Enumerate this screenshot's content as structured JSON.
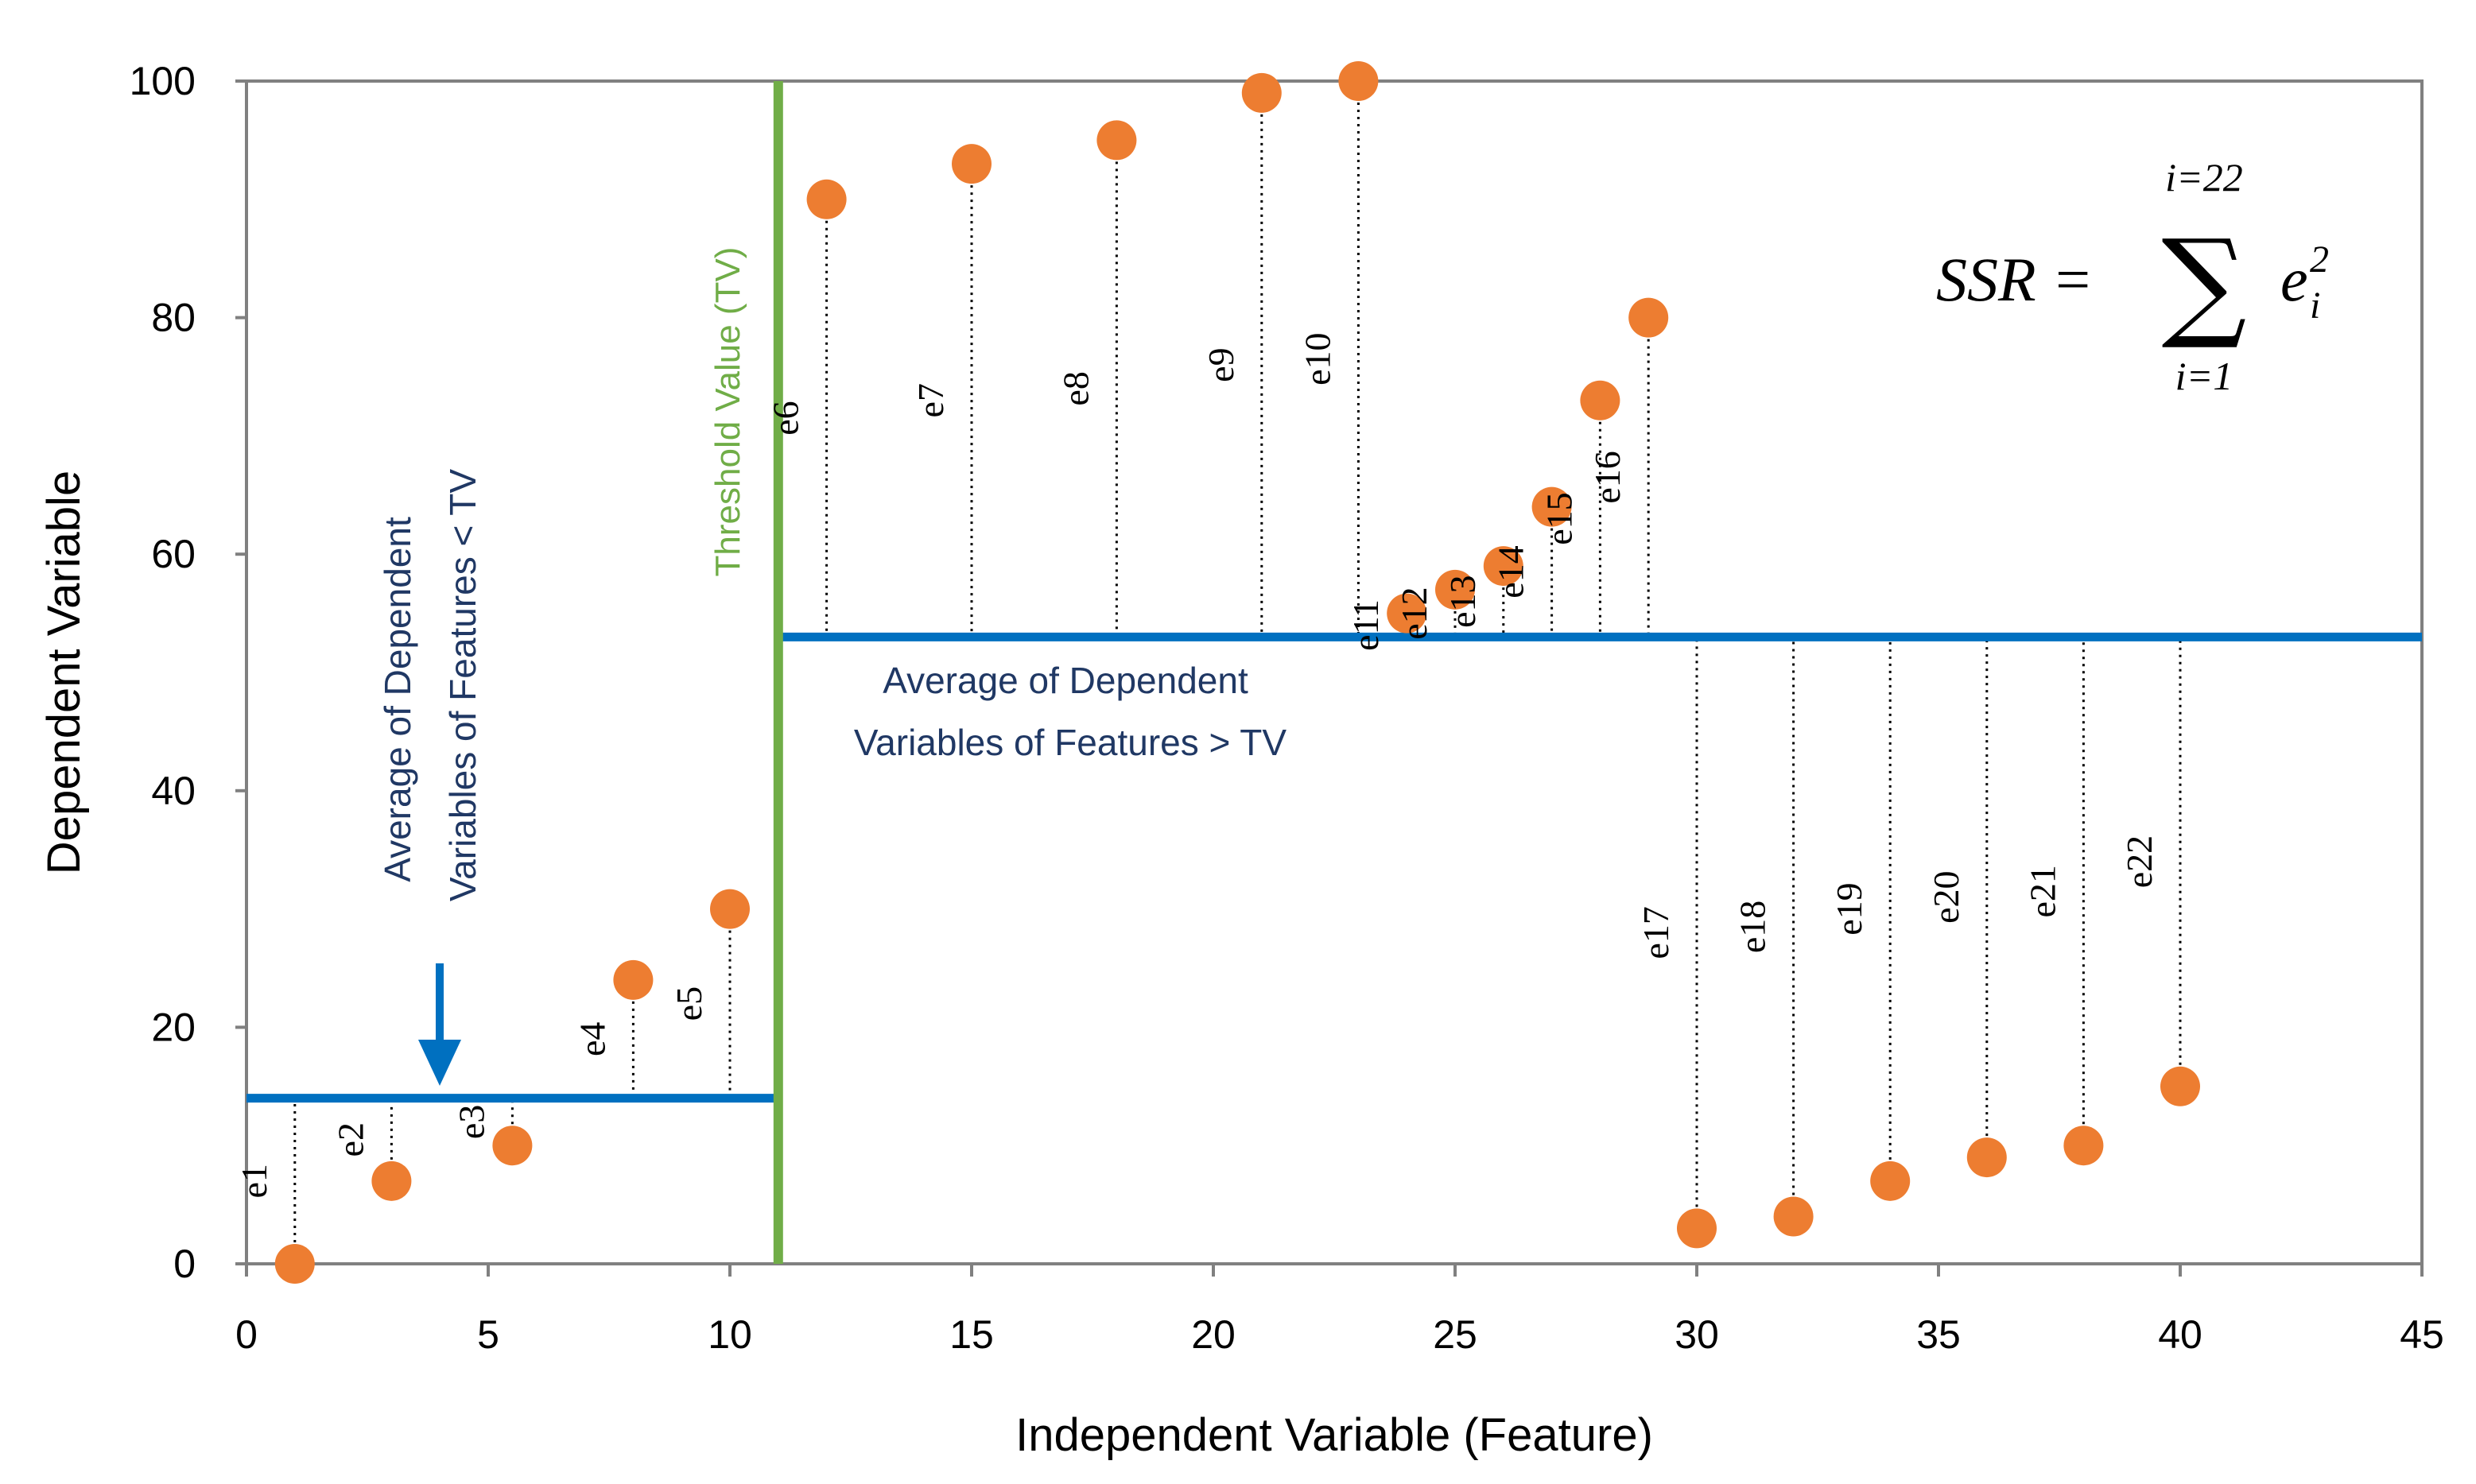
{
  "chart_data": {
    "type": "scatter",
    "xlabel": "Independent Variable (Feature)",
    "ylabel": "Dependent Variable",
    "xlim": [
      0,
      45
    ],
    "ylim": [
      0,
      100
    ],
    "xticks": [
      "0",
      "5",
      "10",
      "15",
      "20",
      "25",
      "30",
      "35",
      "40",
      "45"
    ],
    "yticks": [
      "0",
      "20",
      "40",
      "60",
      "80",
      "100"
    ],
    "points": [
      {
        "x": 1,
        "y": 0,
        "label": "e1"
      },
      {
        "x": 3,
        "y": 7,
        "label": "e2"
      },
      {
        "x": 5.5,
        "y": 10,
        "label": "e3"
      },
      {
        "x": 8,
        "y": 24,
        "label": "e4"
      },
      {
        "x": 10,
        "y": 30,
        "label": "e5"
      },
      {
        "x": 12,
        "y": 90,
        "label": "e6"
      },
      {
        "x": 15,
        "y": 93,
        "label": "e7"
      },
      {
        "x": 18,
        "y": 95,
        "label": "e8"
      },
      {
        "x": 21,
        "y": 99,
        "label": "e9"
      },
      {
        "x": 23,
        "y": 100,
        "label": "e10"
      },
      {
        "x": 24,
        "y": 55,
        "label": "e11"
      },
      {
        "x": 25,
        "y": 57,
        "label": "e12"
      },
      {
        "x": 26,
        "y": 59,
        "label": "e13"
      },
      {
        "x": 27,
        "y": 64,
        "label": "e14"
      },
      {
        "x": 28,
        "y": 73,
        "label": "e15"
      },
      {
        "x": 29,
        "y": 80,
        "label": "e16"
      },
      {
        "x": 30,
        "y": 3,
        "label": "e17"
      },
      {
        "x": 32,
        "y": 4,
        "label": "e18"
      },
      {
        "x": 34,
        "y": 7,
        "label": "e19"
      },
      {
        "x": 36,
        "y": 9,
        "label": "e20"
      },
      {
        "x": 38,
        "y": 10,
        "label": "e21"
      },
      {
        "x": 40,
        "y": 15,
        "label": "e22"
      }
    ],
    "threshold": {
      "x": 11,
      "label": "Threshold Value (TV)"
    },
    "average_left": {
      "y": 14,
      "x_from": 0,
      "x_to": 11,
      "label_line1": "Average of Dependent",
      "label_line2": "Variables of Features < TV"
    },
    "average_right": {
      "y": 53,
      "x_from": 11,
      "x_to": 45,
      "label_line1": "Average of Dependent",
      "label_line2": "Variables of Features > TV"
    },
    "formula": {
      "lhs": "SSR =",
      "sum_symbol": "∑",
      "upper": "i=22",
      "lower": "i=1",
      "term": "e",
      "subscript": "i",
      "superscript": "2"
    }
  },
  "colors": {
    "point": "#ED7D31",
    "threshold": "#70AD47",
    "average": "#0070C0",
    "annotation": "#203864",
    "axis": "#808080"
  }
}
